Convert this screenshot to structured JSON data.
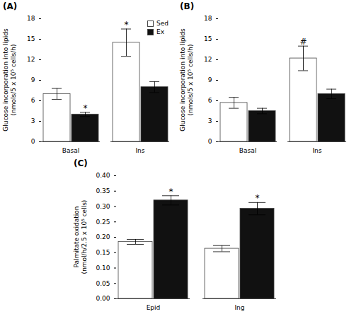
{
  "chart_data": [
    {
      "type": "bar",
      "title": "(A)",
      "categories": [
        "Basal",
        "Ins"
      ],
      "series": [
        {
          "name": "Sed",
          "color": "#ffffff",
          "values": [
            7.0,
            14.5
          ],
          "errors": [
            0.8,
            2.0
          ]
        },
        {
          "name": "Ex",
          "color": "#111111",
          "values": [
            4.0,
            8.0
          ],
          "errors": [
            0.3,
            0.8
          ]
        }
      ],
      "ylabel": "Glucose incorporation into lipids\n(nmols/5 x 10⁵ cells/h)",
      "ylim": [
        0,
        18
      ],
      "yticks": [
        0,
        3,
        6,
        9,
        12,
        15,
        18
      ],
      "legend": "upper right",
      "annotations": [
        {
          "text": "*",
          "category": "Basal",
          "series": "Ex"
        },
        {
          "text": "*",
          "category": "Ins",
          "series": "Sed"
        }
      ]
    },
    {
      "type": "bar",
      "title": "(B)",
      "categories": [
        "Basal",
        "Ins"
      ],
      "series": [
        {
          "name": "Sed",
          "color": "#ffffff",
          "values": [
            5.7,
            12.2
          ],
          "errors": [
            0.8,
            1.8
          ]
        },
        {
          "name": "Ex",
          "color": "#111111",
          "values": [
            4.5,
            7.0
          ],
          "errors": [
            0.4,
            0.7
          ]
        }
      ],
      "ylabel": "Glucose incorporation into lipids\n(nmols/5 x 10⁵ cells/h)",
      "ylim": [
        0,
        18
      ],
      "yticks": [
        0,
        3,
        6,
        9,
        12,
        15,
        18
      ],
      "annotations": [
        {
          "text": "#",
          "category": "Ins",
          "series": "Sed"
        }
      ]
    },
    {
      "type": "bar",
      "title": "(C)",
      "categories": [
        "Epid",
        "Ing"
      ],
      "series": [
        {
          "name": "Sed",
          "color": "#ffffff",
          "values": [
            0.185,
            0.163
          ],
          "errors": [
            0.008,
            0.01
          ]
        },
        {
          "name": "Ex",
          "color": "#111111",
          "values": [
            0.32,
            0.293
          ],
          "errors": [
            0.015,
            0.02
          ]
        }
      ],
      "ylabel": "Palmitate oxidation\n(nmol/h/2.5 x 10⁵ cells)",
      "ylim": [
        0,
        0.4
      ],
      "yticks": [
        {
          "value": 0,
          "label": "0.00"
        },
        {
          "value": 0.05,
          "label": "0.05"
        },
        {
          "value": 0.1,
          "label": "0.10"
        },
        {
          "value": 0.15,
          "label": "0.15"
        },
        {
          "value": 0.2,
          "label": "0.20"
        },
        {
          "value": 0.25,
          "label": "0.25"
        },
        {
          "value": 0.3,
          "label": "0.30"
        },
        {
          "value": 0.35,
          "label": "0.35"
        },
        {
          "value": 0.4,
          "label": "0.40"
        }
      ],
      "annotations": [
        {
          "text": "*",
          "category": "Epid",
          "series": "Ex"
        },
        {
          "text": "*",
          "category": "Ing",
          "series": "Ex"
        }
      ]
    }
  ]
}
